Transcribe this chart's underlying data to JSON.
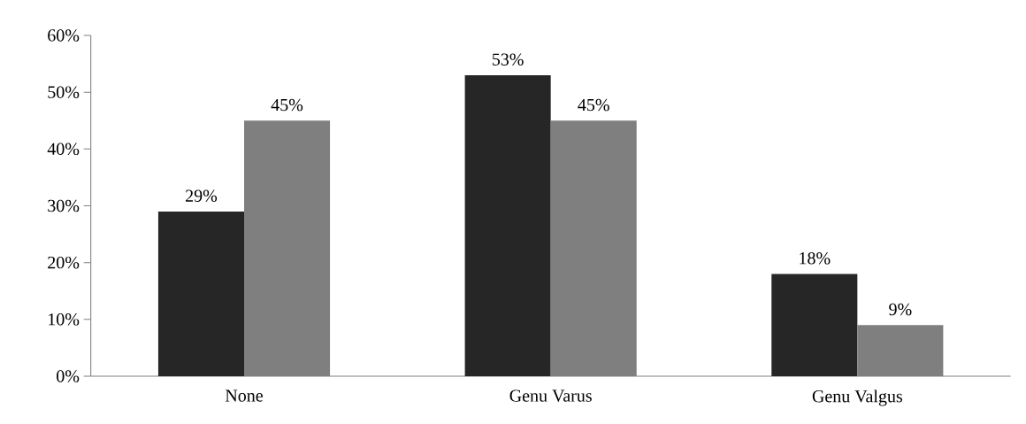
{
  "chart_data": {
    "type": "bar",
    "categories": [
      "None",
      "Genu Varus",
      "Genu Valgus"
    ],
    "series": [
      {
        "color": "#262626",
        "values": [
          29,
          53,
          18
        ],
        "value_labels": [
          "29%",
          "53%",
          "18%"
        ]
      },
      {
        "color": "#7f7f7f",
        "values": [
          45,
          45,
          9
        ],
        "value_labels": [
          "45%",
          "45%",
          "9%"
        ]
      }
    ],
    "ylim": [
      0,
      60
    ],
    "yticks": [
      {
        "value": 0,
        "label": "0%"
      },
      {
        "value": 10,
        "label": "10%"
      },
      {
        "value": 20,
        "label": "20%"
      },
      {
        "value": 30,
        "label": "30%"
      },
      {
        "value": 40,
        "label": "40%"
      },
      {
        "value": 50,
        "label": "50%"
      },
      {
        "value": 60,
        "label": "60%"
      }
    ],
    "grid": false
  }
}
